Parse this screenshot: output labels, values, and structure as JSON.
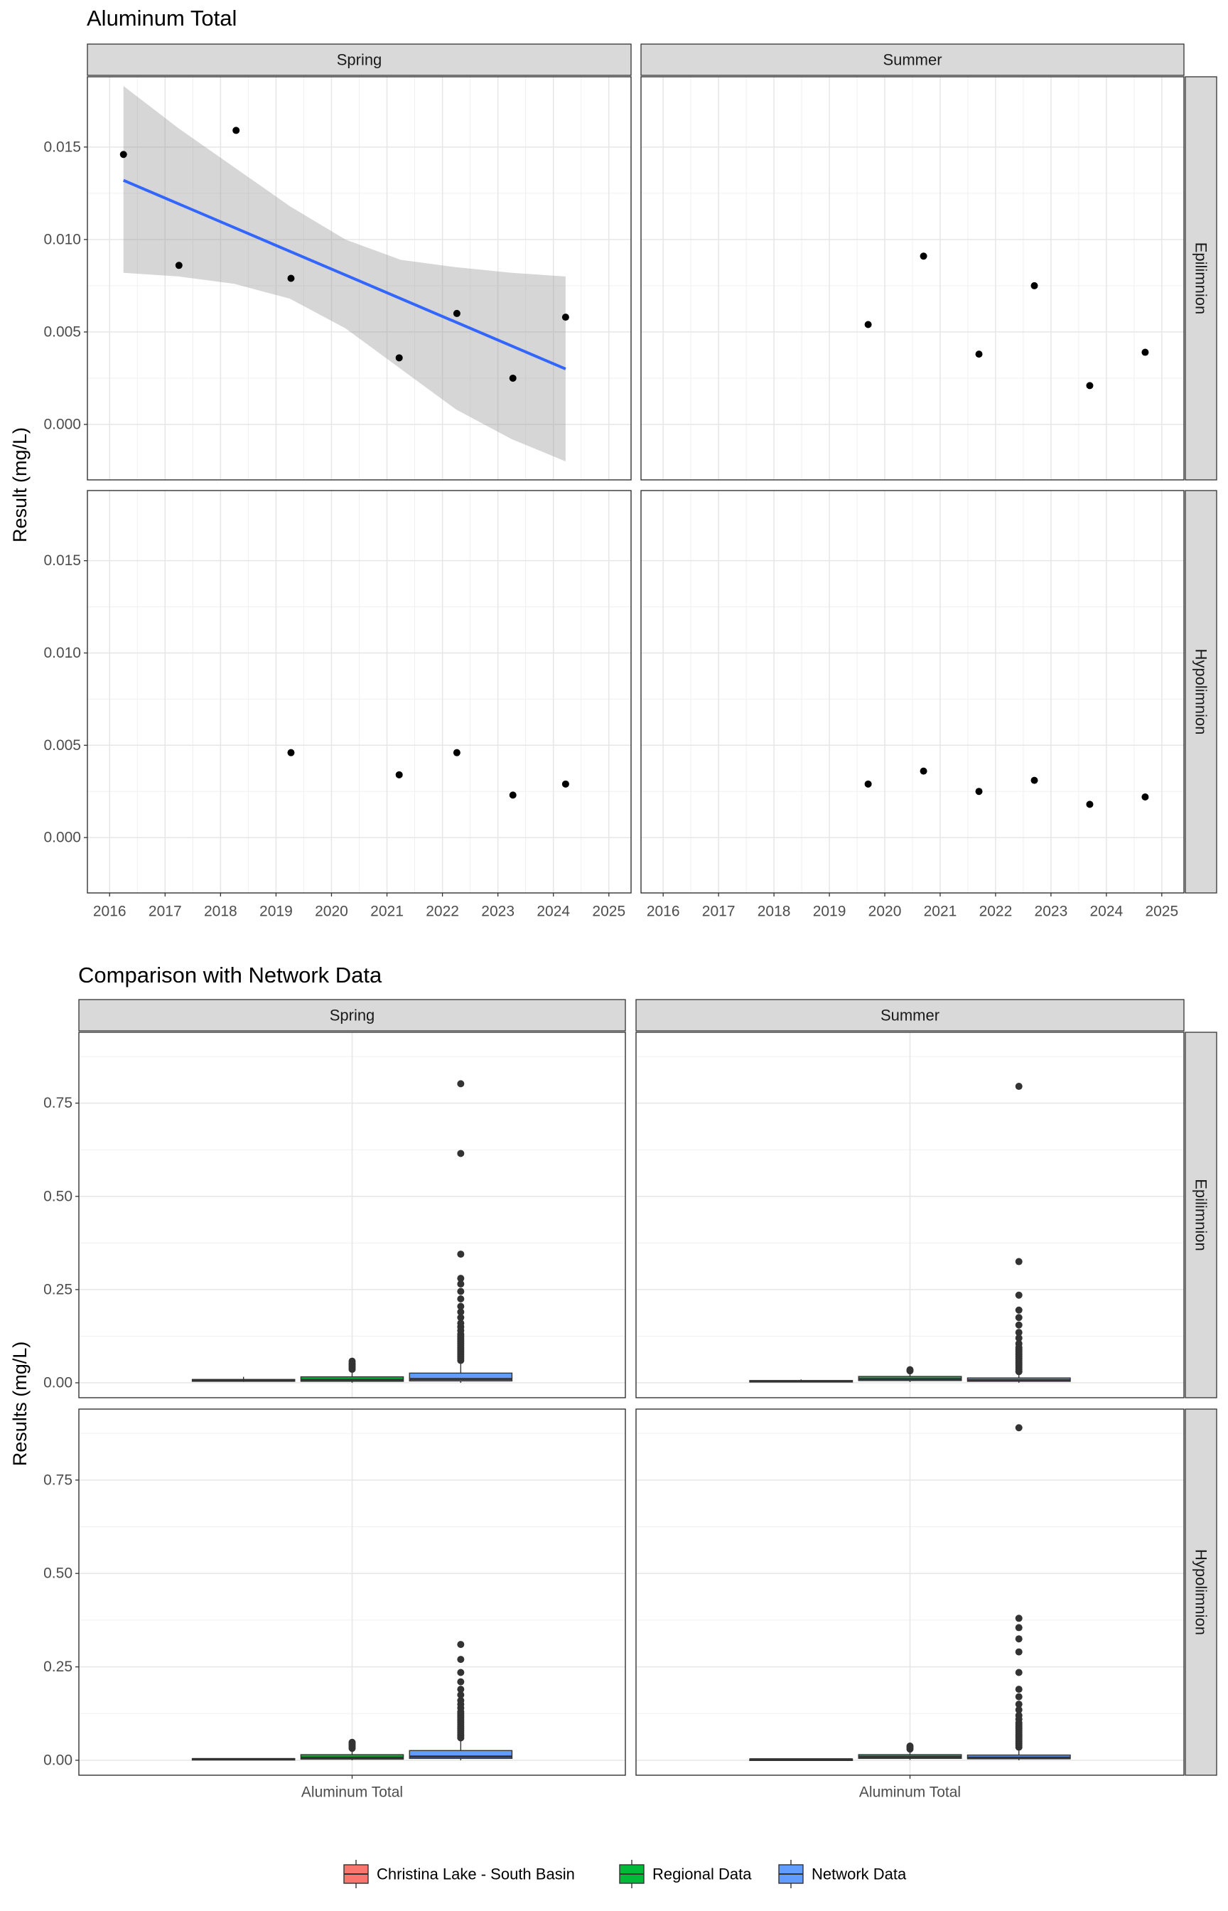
{
  "chart_data": [
    {
      "type": "scatter",
      "title": "Aluminum Total",
      "ylabel": "Result (mg/L)",
      "xlabel": "",
      "x_ticks": [
        "2016",
        "2017",
        "2018",
        "2019",
        "2020",
        "2021",
        "2022",
        "2023",
        "2024",
        "2025"
      ],
      "x_range": [
        2015.6,
        2025.4
      ],
      "y_ticks": [
        "0.000",
        "0.005",
        "0.010",
        "0.015"
      ],
      "y_range": [
        -0.003,
        0.0188
      ],
      "grid": true,
      "column_strips": [
        "Spring",
        "Summer"
      ],
      "row_strips": [
        "Epilimnion",
        "Hypolimnion"
      ],
      "panels": [
        {
          "column": "Spring",
          "row": "Epilimnion",
          "points": [
            [
              2016.25,
              0.0146
            ],
            [
              2017.25,
              0.0086
            ],
            [
              2018.28,
              0.0159
            ],
            [
              2019.27,
              0.0079
            ],
            [
              2021.22,
              0.0036
            ],
            [
              2022.26,
              0.006
            ],
            [
              2023.27,
              0.0025
            ],
            [
              2024.22,
              0.0058
            ]
          ],
          "trend": {
            "x": [
              2016.25,
              2024.22
            ],
            "y": [
              0.0132,
              0.003
            ]
          },
          "band": {
            "x": [
              2016.25,
              2017.25,
              2018.25,
              2019.25,
              2020.25,
              2021.25,
              2022.25,
              2023.25,
              2024.22
            ],
            "upper": [
              0.0183,
              0.016,
              0.0139,
              0.0118,
              0.01,
              0.0089,
              0.0085,
              0.0082,
              0.008
            ],
            "lower": [
              0.0082,
              0.008,
              0.0076,
              0.0068,
              0.0052,
              0.003,
              0.0008,
              -0.0008,
              -0.002
            ]
          }
        },
        {
          "column": "Summer",
          "row": "Epilimnion",
          "points": [
            [
              2019.7,
              0.0054
            ],
            [
              2020.7,
              0.0091
            ],
            [
              2021.7,
              0.0038
            ],
            [
              2022.7,
              0.0075
            ],
            [
              2023.7,
              0.0021
            ],
            [
              2024.7,
              0.0039
            ]
          ]
        },
        {
          "column": "Spring",
          "row": "Hypolimnion",
          "points": [
            [
              2019.27,
              0.0046
            ],
            [
              2021.22,
              0.0034
            ],
            [
              2022.26,
              0.0046
            ],
            [
              2023.27,
              0.0023
            ],
            [
              2024.22,
              0.0029
            ]
          ]
        },
        {
          "column": "Summer",
          "row": "Hypolimnion",
          "points": [
            [
              2019.7,
              0.0029
            ],
            [
              2020.7,
              0.0036
            ],
            [
              2021.7,
              0.0025
            ],
            [
              2022.7,
              0.0031
            ],
            [
              2023.7,
              0.0018
            ],
            [
              2024.7,
              0.0022
            ]
          ]
        }
      ]
    },
    {
      "type": "boxplot",
      "title": "Comparison with Network Data",
      "ylabel": "Results (mg/L)",
      "x_tick": "Aluminum Total",
      "y_ticks": [
        "0.00",
        "0.25",
        "0.50",
        "0.75"
      ],
      "y_range": [
        -0.04,
        0.94
      ],
      "grid": true,
      "column_strips": [
        "Spring",
        "Summer"
      ],
      "row_strips": [
        "Epilimnion",
        "Hypolimnion"
      ],
      "legend": {
        "position": "bottom",
        "items": [
          {
            "label": "Christina Lake - South Basin",
            "color": "#F8766D"
          },
          {
            "label": "Regional Data",
            "color": "#00BA38"
          },
          {
            "label": "Network Data",
            "color": "#619CFF"
          }
        ]
      },
      "panels": [
        {
          "column": "Spring",
          "row": "Epilimnion",
          "boxes": [
            {
              "group": "Christina Lake - South Basin",
              "q1": 0.004,
              "median": 0.006,
              "q3": 0.009,
              "whisker_low": 0.0025,
              "whisker_high": 0.016,
              "outliers": []
            },
            {
              "group": "Regional Data",
              "q1": 0.004,
              "median": 0.008,
              "q3": 0.016,
              "whisker_low": 0.0,
              "whisker_high": 0.032,
              "outliers": [
                0.036,
                0.04,
                0.044,
                0.048,
                0.052,
                0.058
              ]
            },
            {
              "group": "Network Data",
              "q1": 0.005,
              "median": 0.01,
              "q3": 0.026,
              "whisker_low": 0.0,
              "whisker_high": 0.055,
              "outliers": [
                0.06,
                0.065,
                0.07,
                0.075,
                0.08,
                0.085,
                0.09,
                0.095,
                0.1,
                0.105,
                0.11,
                0.115,
                0.12,
                0.125,
                0.13,
                0.14,
                0.15,
                0.16,
                0.175,
                0.19,
                0.205,
                0.225,
                0.245,
                0.265,
                0.28,
                0.345,
                0.615,
                0.802
              ]
            }
          ]
        },
        {
          "column": "Summer",
          "row": "Epilimnion",
          "boxes": [
            {
              "group": "Christina Lake - South Basin",
              "q1": 0.002,
              "median": 0.004,
              "q3": 0.006,
              "whisker_low": 0.0015,
              "whisker_high": 0.009,
              "outliers": []
            },
            {
              "group": "Regional Data",
              "q1": 0.006,
              "median": 0.01,
              "q3": 0.017,
              "whisker_low": 0.002,
              "whisker_high": 0.026,
              "outliers": [
                0.032,
                0.035
              ]
            },
            {
              "group": "Network Data",
              "q1": 0.004,
              "median": 0.007,
              "q3": 0.013,
              "whisker_low": 0.0,
              "whisker_high": 0.025,
              "outliers": [
                0.03,
                0.035,
                0.04,
                0.045,
                0.05,
                0.055,
                0.06,
                0.065,
                0.07,
                0.075,
                0.08,
                0.085,
                0.09,
                0.095,
                0.105,
                0.12,
                0.135,
                0.155,
                0.175,
                0.195,
                0.235,
                0.325,
                0.795
              ]
            }
          ]
        },
        {
          "column": "Spring",
          "row": "Hypolimnion",
          "boxes": [
            {
              "group": "Christina Lake - South Basin",
              "q1": 0.002,
              "median": 0.003,
              "q3": 0.0045,
              "whisker_low": 0.002,
              "whisker_high": 0.005,
              "outliers": []
            },
            {
              "group": "Regional Data",
              "q1": 0.003,
              "median": 0.007,
              "q3": 0.015,
              "whisker_low": 0.0,
              "whisker_high": 0.028,
              "outliers": [
                0.032,
                0.036,
                0.04,
                0.044,
                0.048
              ]
            },
            {
              "group": "Network Data",
              "q1": 0.005,
              "median": 0.01,
              "q3": 0.026,
              "whisker_low": 0.0,
              "whisker_high": 0.055,
              "outliers": [
                0.06,
                0.065,
                0.07,
                0.075,
                0.08,
                0.085,
                0.09,
                0.095,
                0.1,
                0.105,
                0.11,
                0.115,
                0.12,
                0.125,
                0.13,
                0.14,
                0.15,
                0.16,
                0.175,
                0.19,
                0.21,
                0.235,
                0.27,
                0.31
              ]
            }
          ]
        },
        {
          "column": "Summer",
          "row": "Hypolimnion",
          "boxes": [
            {
              "group": "Christina Lake - South Basin",
              "q1": 0.0018,
              "median": 0.0025,
              "q3": 0.0032,
              "whisker_low": 0.0015,
              "whisker_high": 0.0036,
              "outliers": []
            },
            {
              "group": "Regional Data",
              "q1": 0.005,
              "median": 0.009,
              "q3": 0.015,
              "whisker_low": 0.001,
              "whisker_high": 0.025,
              "outliers": [
                0.03,
                0.034,
                0.038
              ]
            },
            {
              "group": "Network Data",
              "q1": 0.004,
              "median": 0.007,
              "q3": 0.014,
              "whisker_low": 0.0,
              "whisker_high": 0.03,
              "outliers": [
                0.035,
                0.04,
                0.045,
                0.05,
                0.055,
                0.06,
                0.065,
                0.07,
                0.075,
                0.08,
                0.085,
                0.09,
                0.095,
                0.1,
                0.11,
                0.12,
                0.135,
                0.15,
                0.17,
                0.19,
                0.235,
                0.29,
                0.325,
                0.355,
                0.38,
                0.89
              ]
            }
          ]
        }
      ]
    }
  ]
}
